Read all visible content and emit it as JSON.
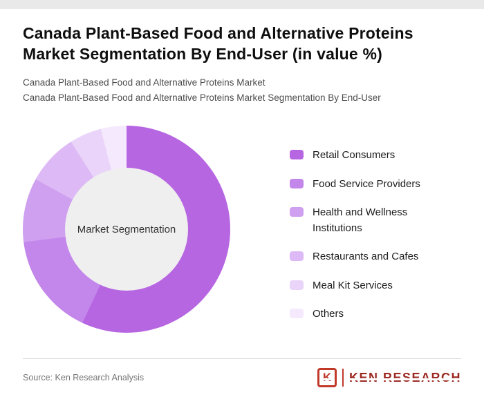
{
  "header": {
    "title": "Canada Plant-Based Food and Alternative Proteins Market Segmentation By End-User (in value %)",
    "subtitle_line1": "Canada Plant-Based Food and Alternative Proteins Market",
    "subtitle_line2": "Canada Plant-Based Food and Alternative Proteins Market Segmentation By End-User"
  },
  "chart_data": {
    "type": "pie",
    "subtype": "donut",
    "title": "Canada Plant-Based Food and Alternative Proteins Market Segmentation By End-User (in value %)",
    "center_label": "Market Segmentation",
    "unit": "value %",
    "legend_position": "right",
    "segments": [
      {
        "label": "Retail Consumers",
        "value": 57,
        "color": "#b766e2"
      },
      {
        "label": "Food Service Providers",
        "value": 16,
        "color": "#c386ea"
      },
      {
        "label": "Health and Wellness Institutions",
        "value": 10,
        "color": "#cf9ff0"
      },
      {
        "label": "Restaurants and Cafes",
        "value": 8,
        "color": "#ddb9f5"
      },
      {
        "label": "Meal Kit Services",
        "value": 5,
        "color": "#ead4f9"
      },
      {
        "label": "Others",
        "value": 4,
        "color": "#f5e9fd"
      }
    ]
  },
  "footer": {
    "source": "Source: Ken Research Analysis",
    "logo": {
      "letter": "K",
      "text": "KEN RESEARCH",
      "accent_color": "#c0392b"
    }
  }
}
